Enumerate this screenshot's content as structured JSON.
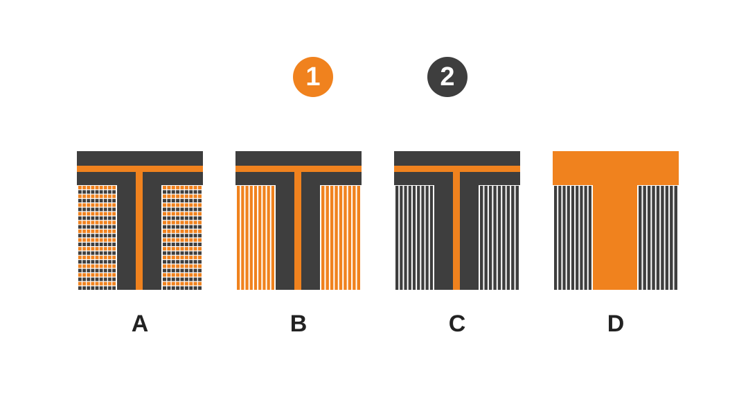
{
  "colors": {
    "orange": "#F0821E",
    "dark": "#3E3E3E",
    "white": "#FFFFFF"
  },
  "legend": [
    {
      "id": "1",
      "color": "#F0821E"
    },
    {
      "id": "2",
      "color": "#3E3E3E"
    }
  ],
  "diagrams": [
    {
      "label": "A",
      "frame_color": "dark",
      "has_center_stripe": true,
      "side_pattern": "checker",
      "side_color": "orange"
    },
    {
      "label": "B",
      "frame_color": "dark",
      "has_center_stripe": true,
      "side_pattern": "vertical-stripes",
      "side_color": "orange"
    },
    {
      "label": "C",
      "frame_color": "dark",
      "has_center_stripe": true,
      "side_pattern": "vertical-stripes",
      "side_color": "dark"
    },
    {
      "label": "D",
      "frame_color": "orange",
      "has_center_stripe": false,
      "side_pattern": "vertical-stripes",
      "side_color": "dark"
    }
  ]
}
